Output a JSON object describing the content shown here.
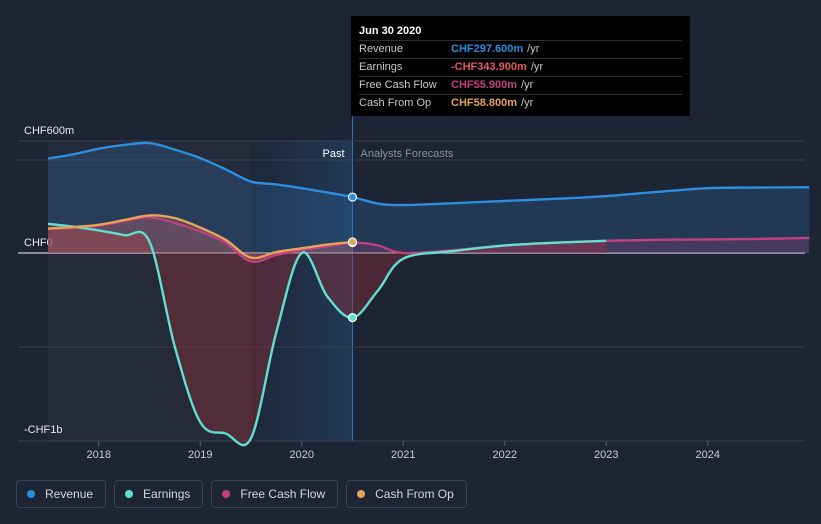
{
  "chart_data": {
    "type": "area",
    "title": "",
    "xlabel": "",
    "ylabel": "",
    "x_ticks": [
      "2018",
      "2019",
      "2020",
      "2021",
      "2022",
      "2023",
      "2024"
    ],
    "y_ticks": [
      {
        "value": 600,
        "label": "CHF600m"
      },
      {
        "value": 0,
        "label": "CHF0"
      },
      {
        "value": -1000,
        "label": "-CHF1b"
      }
    ],
    "ylim": [
      -1000,
      600
    ],
    "xlim": [
      2017.0,
      2025.0
    ],
    "past_label": "Past",
    "forecast_label": "Analysts Forecasts",
    "past_end": 2020.5,
    "colors": {
      "revenue": "#2d8ee0",
      "earnings": "#61e0cf",
      "fcf": "#c3407e",
      "cfo": "#e6a35a",
      "background": "#1d2433"
    },
    "series": [
      {
        "name": "Revenue",
        "key": "revenue",
        "points": [
          [
            2017.5,
            503
          ],
          [
            2017.75,
            525
          ],
          [
            2018.0,
            555
          ],
          [
            2018.25,
            575
          ],
          [
            2018.5,
            585
          ],
          [
            2018.75,
            550
          ],
          [
            2019.0,
            505
          ],
          [
            2019.25,
            445
          ],
          [
            2019.5,
            380
          ],
          [
            2019.75,
            365
          ],
          [
            2020.0,
            345
          ],
          [
            2020.25,
            322
          ],
          [
            2020.5,
            297.6
          ],
          [
            2020.75,
            263
          ],
          [
            2021.0,
            255
          ],
          [
            2021.5,
            265
          ],
          [
            2022.0,
            277
          ],
          [
            2022.5,
            288
          ],
          [
            2023.0,
            303
          ],
          [
            2023.5,
            325
          ],
          [
            2024.0,
            345
          ],
          [
            2024.5,
            348
          ],
          [
            2025.0,
            350
          ]
        ]
      },
      {
        "name": "Earnings",
        "key": "earnings",
        "points": [
          [
            2017.5,
            155
          ],
          [
            2017.75,
            140
          ],
          [
            2018.0,
            120
          ],
          [
            2018.25,
            95
          ],
          [
            2018.5,
            60
          ],
          [
            2018.75,
            -500
          ],
          [
            2019.0,
            -900
          ],
          [
            2019.25,
            -960
          ],
          [
            2019.5,
            -985
          ],
          [
            2019.75,
            -420
          ],
          [
            2020.0,
            0
          ],
          [
            2020.25,
            -230
          ],
          [
            2020.5,
            -343.9
          ],
          [
            2020.75,
            -200
          ],
          [
            2021.0,
            -30
          ],
          [
            2021.5,
            10
          ],
          [
            2022.0,
            40
          ],
          [
            2022.5,
            55
          ],
          [
            2023.0,
            65
          ]
        ]
      },
      {
        "name": "Free Cash Flow",
        "key": "fcf",
        "points": [
          [
            2017.5,
            130
          ],
          [
            2017.75,
            135
          ],
          [
            2018.0,
            145
          ],
          [
            2018.25,
            170
          ],
          [
            2018.5,
            190
          ],
          [
            2018.75,
            160
          ],
          [
            2019.0,
            115
          ],
          [
            2019.25,
            55
          ],
          [
            2019.5,
            -45
          ],
          [
            2019.75,
            -10
          ],
          [
            2020.0,
            15
          ],
          [
            2020.25,
            35
          ],
          [
            2020.5,
            55.9
          ],
          [
            2020.75,
            40
          ],
          [
            2021.0,
            0
          ],
          [
            2021.5,
            15
          ],
          [
            2022.0,
            40
          ],
          [
            2022.5,
            55
          ],
          [
            2023.0,
            65
          ],
          [
            2023.5,
            70
          ],
          [
            2024.0,
            72
          ],
          [
            2024.5,
            75
          ],
          [
            2025.0,
            80
          ]
        ]
      },
      {
        "name": "Cash From Op",
        "key": "cfo",
        "points": [
          [
            2017.5,
            130
          ],
          [
            2017.75,
            138
          ],
          [
            2018.0,
            150
          ],
          [
            2018.25,
            175
          ],
          [
            2018.5,
            200
          ],
          [
            2018.75,
            185
          ],
          [
            2019.0,
            135
          ],
          [
            2019.25,
            70
          ],
          [
            2019.5,
            -25
          ],
          [
            2019.75,
            5
          ],
          [
            2020.0,
            25
          ],
          [
            2020.25,
            45
          ],
          [
            2020.5,
            58.8
          ]
        ]
      }
    ]
  },
  "tooltip": {
    "date": "Jun 30 2020",
    "rows": [
      {
        "label": "Revenue",
        "value": "CHF297.600m",
        "unit": "/yr",
        "color": "#2d8ee0"
      },
      {
        "label": "Earnings",
        "value": "-CHF343.900m",
        "unit": "/yr",
        "color": "#e05a5a"
      },
      {
        "label": "Free Cash Flow",
        "value": "CHF55.900m",
        "unit": "/yr",
        "color": "#c3407e"
      },
      {
        "label": "Cash From Op",
        "value": "CHF58.800m",
        "unit": "/yr",
        "color": "#e6a35a"
      }
    ]
  },
  "legend": [
    {
      "label": "Revenue",
      "color": "#2d8ee0"
    },
    {
      "label": "Earnings",
      "color": "#61e0cf"
    },
    {
      "label": "Free Cash Flow",
      "color": "#c3407e"
    },
    {
      "label": "Cash From Op",
      "color": "#e6a35a"
    }
  ]
}
